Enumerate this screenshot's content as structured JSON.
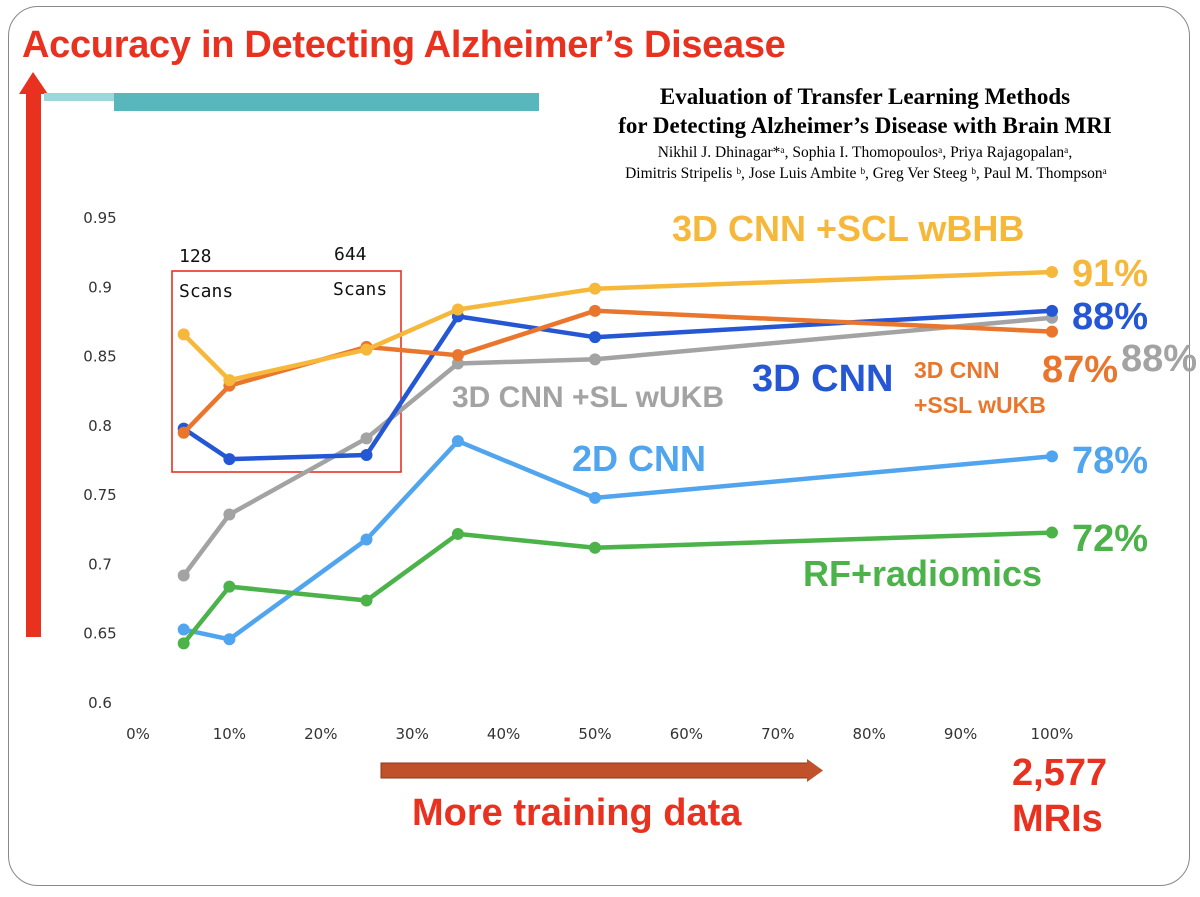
{
  "slide": {
    "title": "Accuracy in Detecting Alzheimer’s Disease",
    "paper_title_1": "Evaluation of Transfer Learning Methods",
    "paper_title_2": "for Detecting Alzheimer’s Disease with Brain MRI",
    "paper_authors_1": "Nikhil J. Dhinagar*ᵃ, Sophia I. Thomopoulosᵃ, Priya Rajagopalanᵃ,",
    "paper_authors_2": "Dimitris Stripelis ᵇ, Jose Luis Ambite ᵇ, Greg Ver Steeg ᵇ, Paul M. Thompsonᵃ",
    "x_arrow_label": "More training data",
    "mris_line1": "2,577",
    "mris_line2": "MRIs",
    "box_128_num": "128",
    "box_128_unit": "Scans",
    "box_644_num": "644",
    "box_644_unit": "Scans",
    "colors": {
      "accent_red": "#e8321f",
      "arrow_brown": "#c0512a",
      "teal": "#57b7bd"
    }
  },
  "annotations": {
    "scl_label": "3D CNN +SCL wBHB",
    "cnn3d_label": "3D CNN",
    "ssl_label_1": "3D CNN",
    "ssl_label_2": "+SSL wUKB",
    "sl_label": "3D CNN +SL wUKB",
    "cnn2d_label": "2D CNN",
    "rf_label": "RF+radiomics",
    "pct_scl": "91%",
    "pct_3dcnn": "88%",
    "pct_ssl": "87%",
    "pct_sl": "88%",
    "pct_2d": "78%",
    "pct_rf": "72%"
  },
  "chart_data": {
    "type": "line",
    "title": "Accuracy in Detecting Alzheimer’s Disease",
    "xlabel": "More training data",
    "ylabel": "",
    "x": [
      5,
      10,
      25,
      35,
      50,
      100
    ],
    "x_ticks": [
      "0%",
      "10%",
      "20%",
      "30%",
      "40%",
      "50%",
      "60%",
      "70%",
      "80%",
      "90%",
      "100%"
    ],
    "y_ticks": [
      "0.6",
      "0.65",
      "0.7",
      "0.75",
      "0.8",
      "0.85",
      "0.9",
      "0.95"
    ],
    "xlim": [
      0,
      100
    ],
    "ylim": [
      0.6,
      0.95
    ],
    "grid": false,
    "series": [
      {
        "name": "3D CNN +SL wUKB",
        "color": "#a3a3a3",
        "values": [
          0.692,
          0.736,
          0.791,
          0.845,
          0.848,
          0.878
        ]
      },
      {
        "name": "2D CNN",
        "color": "#51a5ee",
        "values": [
          0.653,
          0.646,
          0.718,
          0.789,
          0.748,
          0.778
        ]
      },
      {
        "name": "RF+radiomics",
        "color": "#4cb24a",
        "values": [
          0.643,
          0.684,
          0.674,
          0.722,
          0.712,
          0.723
        ]
      },
      {
        "name": "3D CNN",
        "color": "#2557d4",
        "values": [
          0.798,
          0.776,
          0.779,
          0.879,
          0.864,
          0.883
        ]
      },
      {
        "name": "3D CNN +SSL wUKB",
        "color": "#e9762c",
        "values": [
          0.795,
          0.829,
          0.857,
          0.851,
          0.883,
          0.868
        ]
      },
      {
        "name": "3D CNN +SCL wBHB",
        "color": "#f6b83a",
        "values": [
          0.866,
          0.833,
          0.855,
          0.884,
          0.899,
          0.911
        ]
      }
    ]
  }
}
